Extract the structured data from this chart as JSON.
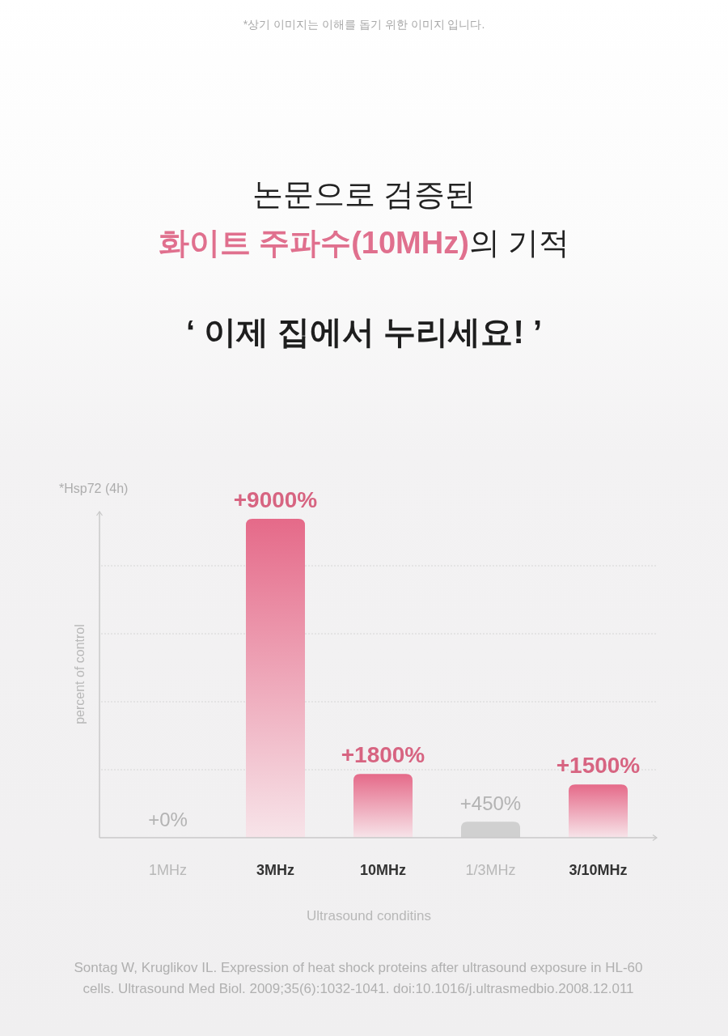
{
  "chart_data": {
    "type": "bar",
    "title": "논문으로 검증된\n**화이트 주파수(10MHz)**의 기적",
    "subtitle": "‘ 이제 집에서 누리세요! ’",
    "xlabel": "Ultrasound conditins",
    "ylabel": "percent of control",
    "annotations": [
      "*상기 이미지는 이해를 돕기 위한 이미지 입니다.",
      "*Hsp72 (4h)",
      "Sontag W, Kruglikov IL. Expression of heat shock proteins after ultrasound exposure in HL-60 cells. Ultrasound Med Biol. 2009;35(6):1032-1041. doi:10.1016/j.ultrasmedbio.2008.12.011"
    ],
    "categories": [
      "1MHz",
      "3MHz",
      "10MHz",
      "1/3MHz",
      "3/10MHz"
    ],
    "values": [
      0,
      9000,
      1800,
      450,
      1500
    ],
    "colors": [
      "#d0d0d0",
      "#e56a89",
      "#e56a89",
      "#d0d0d0",
      "#e56a89"
    ],
    "value_labels": [
      "+0%",
      "+9000%",
      "+1800%",
      "+450%",
      "+1500%"
    ],
    "grid": true
  }
}
